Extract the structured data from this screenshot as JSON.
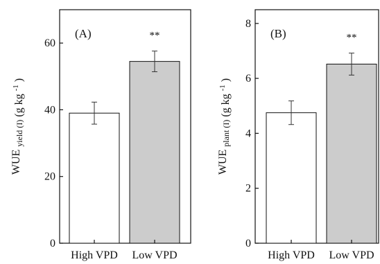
{
  "chart_data": [
    {
      "type": "bar",
      "panel_label": "(A)",
      "categories": [
        "High VPD",
        "Low VPD"
      ],
      "values": [
        39,
        54.5
      ],
      "errors": [
        3.3,
        3.1
      ],
      "annotations": [
        "",
        "**"
      ],
      "ylabel_main": "WUE",
      "ylabel_sub": "yield (I)",
      "ylabel_unit": "(g kg",
      "ylabel_sup": "-1",
      "ylabel_close": ")",
      "ylim": [
        0,
        70
      ],
      "yticks": [
        0,
        20,
        40,
        60
      ],
      "bar_colors": [
        "#ffffff",
        "#cccccc"
      ],
      "grid": false
    },
    {
      "type": "bar",
      "panel_label": "(B)",
      "categories": [
        "High VPD",
        "Low VPD"
      ],
      "values": [
        4.75,
        6.52
      ],
      "errors": [
        0.43,
        0.4
      ],
      "annotations": [
        "",
        "**"
      ],
      "ylabel_main": "WUE",
      "ylabel_sub": "plant (I)",
      "ylabel_unit": "(g kg",
      "ylabel_sup": "-1",
      "ylabel_close": ")",
      "ylim": [
        0,
        8.5
      ],
      "yticks": [
        0,
        2,
        4,
        6,
        8
      ],
      "bar_colors": [
        "#ffffff",
        "#cccccc"
      ],
      "grid": false
    }
  ]
}
